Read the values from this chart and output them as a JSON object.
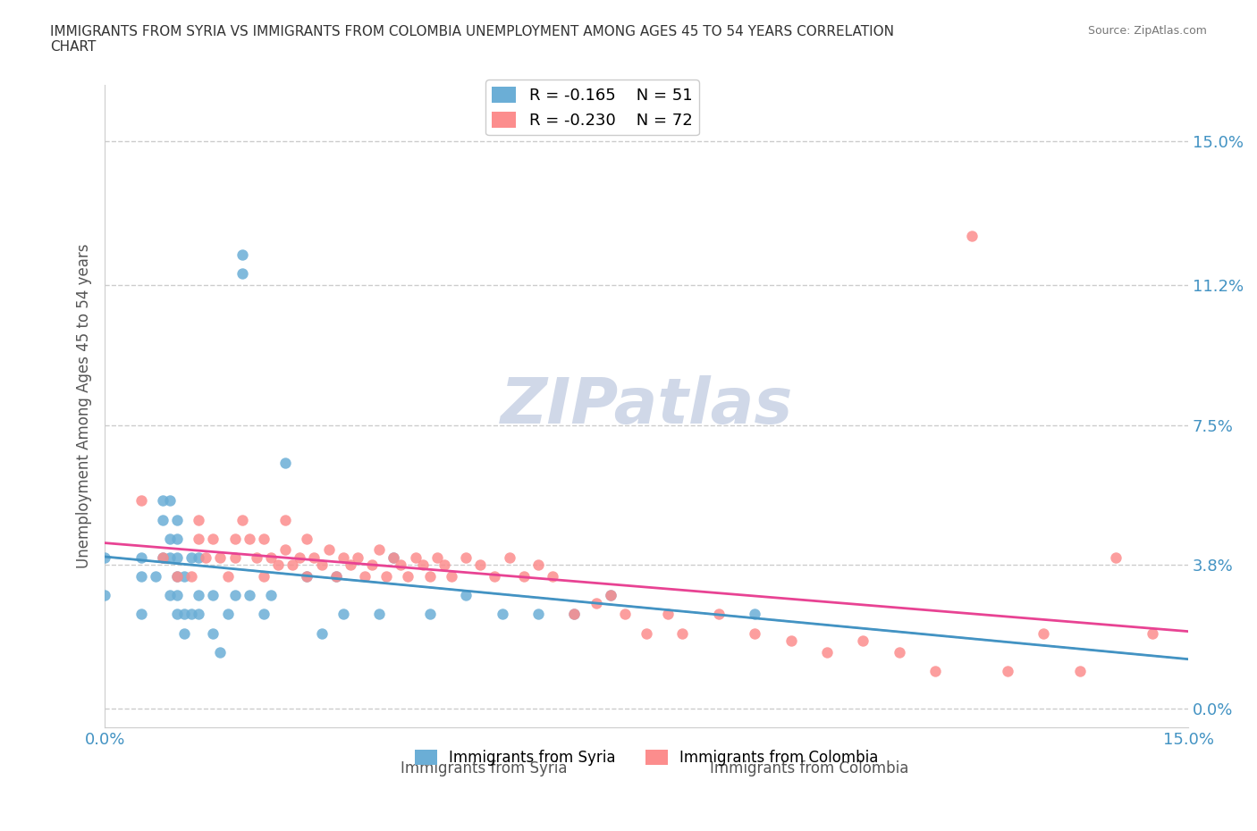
{
  "title": "IMMIGRANTS FROM SYRIA VS IMMIGRANTS FROM COLOMBIA UNEMPLOYMENT AMONG AGES 45 TO 54 YEARS CORRELATION\nCHART",
  "source_text": "Source: ZipAtlas.com",
  "xlabel": "",
  "ylabel": "Unemployment Among Ages 45 to 54 years",
  "xlim": [
    0.0,
    0.15
  ],
  "ylim": [
    -0.01,
    0.16
  ],
  "yticks": [
    0.0,
    0.038,
    0.075,
    0.112,
    0.15
  ],
  "ytick_labels": [
    "0.0%",
    "3.8%",
    "7.5%",
    "11.2%",
    "15.0%"
  ],
  "xticks": [
    0.0,
    0.15
  ],
  "xtick_labels": [
    "0.0%",
    "15.0%"
  ],
  "legend_r_syria": "R = -0.165",
  "legend_n_syria": "N = 51",
  "legend_r_colombia": "R = -0.230",
  "legend_n_colombia": "N = 72",
  "syria_color": "#6baed6",
  "colombia_color": "#fc8d8d",
  "syria_line_color": "#4393c3",
  "colombia_line_color": "#e84393",
  "grid_color": "#cccccc",
  "axis_label_color": "#4393c3",
  "watermark_text": "ZIPatlas",
  "watermark_color": "#d0d8e8",
  "syria_scatter_x": [
    0.0,
    0.0,
    0.005,
    0.005,
    0.005,
    0.007,
    0.008,
    0.008,
    0.008,
    0.009,
    0.009,
    0.009,
    0.009,
    0.01,
    0.01,
    0.01,
    0.01,
    0.01,
    0.01,
    0.011,
    0.011,
    0.011,
    0.012,
    0.012,
    0.013,
    0.013,
    0.013,
    0.015,
    0.015,
    0.016,
    0.017,
    0.018,
    0.019,
    0.019,
    0.02,
    0.022,
    0.023,
    0.025,
    0.028,
    0.03,
    0.032,
    0.033,
    0.038,
    0.04,
    0.045,
    0.05,
    0.055,
    0.06,
    0.065,
    0.07,
    0.09
  ],
  "syria_scatter_y": [
    0.03,
    0.04,
    0.025,
    0.035,
    0.04,
    0.035,
    0.04,
    0.05,
    0.055,
    0.03,
    0.04,
    0.045,
    0.055,
    0.025,
    0.03,
    0.035,
    0.04,
    0.045,
    0.05,
    0.02,
    0.025,
    0.035,
    0.025,
    0.04,
    0.025,
    0.03,
    0.04,
    0.02,
    0.03,
    0.015,
    0.025,
    0.03,
    0.115,
    0.12,
    0.03,
    0.025,
    0.03,
    0.065,
    0.035,
    0.02,
    0.035,
    0.025,
    0.025,
    0.04,
    0.025,
    0.03,
    0.025,
    0.025,
    0.025,
    0.03,
    0.025
  ],
  "colombia_scatter_x": [
    0.005,
    0.008,
    0.01,
    0.012,
    0.013,
    0.013,
    0.014,
    0.015,
    0.016,
    0.017,
    0.018,
    0.018,
    0.019,
    0.02,
    0.021,
    0.022,
    0.022,
    0.023,
    0.024,
    0.025,
    0.025,
    0.026,
    0.027,
    0.028,
    0.028,
    0.029,
    0.03,
    0.031,
    0.032,
    0.033,
    0.034,
    0.035,
    0.036,
    0.037,
    0.038,
    0.039,
    0.04,
    0.041,
    0.042,
    0.043,
    0.044,
    0.045,
    0.046,
    0.047,
    0.048,
    0.05,
    0.052,
    0.054,
    0.056,
    0.058,
    0.06,
    0.062,
    0.065,
    0.068,
    0.07,
    0.072,
    0.075,
    0.078,
    0.08,
    0.085,
    0.09,
    0.095,
    0.1,
    0.105,
    0.11,
    0.115,
    0.12,
    0.125,
    0.13,
    0.135,
    0.14,
    0.145
  ],
  "colombia_scatter_y": [
    0.055,
    0.04,
    0.035,
    0.035,
    0.045,
    0.05,
    0.04,
    0.045,
    0.04,
    0.035,
    0.04,
    0.045,
    0.05,
    0.045,
    0.04,
    0.035,
    0.045,
    0.04,
    0.038,
    0.042,
    0.05,
    0.038,
    0.04,
    0.045,
    0.035,
    0.04,
    0.038,
    0.042,
    0.035,
    0.04,
    0.038,
    0.04,
    0.035,
    0.038,
    0.042,
    0.035,
    0.04,
    0.038,
    0.035,
    0.04,
    0.038,
    0.035,
    0.04,
    0.038,
    0.035,
    0.04,
    0.038,
    0.035,
    0.04,
    0.035,
    0.038,
    0.035,
    0.025,
    0.028,
    0.03,
    0.025,
    0.02,
    0.025,
    0.02,
    0.025,
    0.02,
    0.018,
    0.015,
    0.018,
    0.015,
    0.01,
    0.125,
    0.01,
    0.02,
    0.01,
    0.04,
    0.02
  ]
}
